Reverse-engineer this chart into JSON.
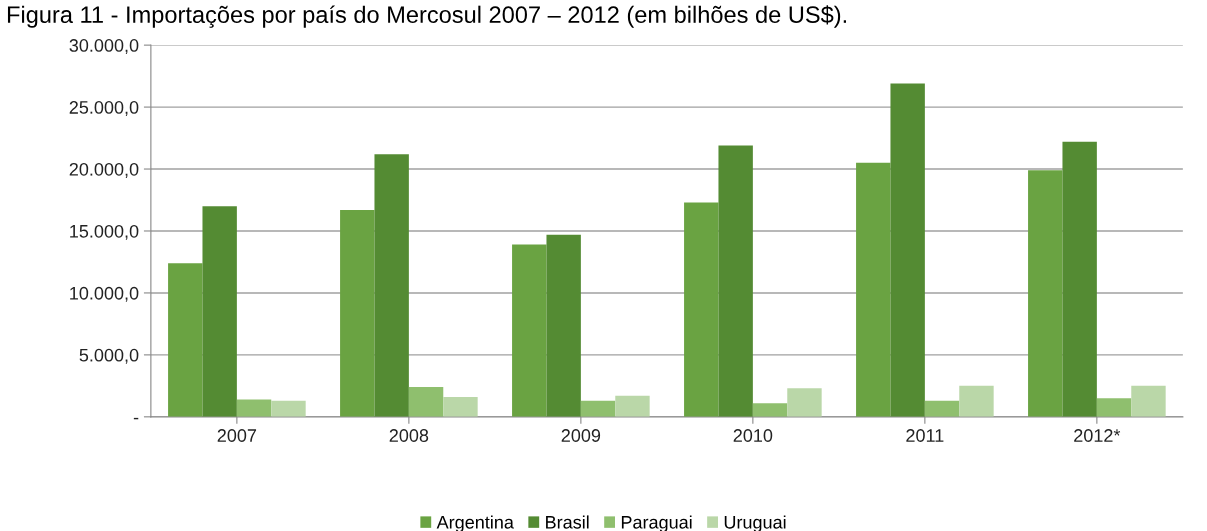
{
  "chart_data": {
    "type": "bar",
    "title": "Figura 11 - Importações por país do Mercosul 2007 – 2012 (em bilhões de US$).",
    "categories": [
      "2007",
      "2008",
      "2009",
      "2010",
      "2011",
      "2012*"
    ],
    "series": [
      {
        "name": "Argentina",
        "color": "#6aa342",
        "values": [
          12400,
          16700,
          13900,
          17300,
          20500,
          19900
        ]
      },
      {
        "name": "Brasil",
        "color": "#548b33",
        "values": [
          17000,
          21200,
          14700,
          21900,
          26900,
          22200
        ]
      },
      {
        "name": "Paraguai",
        "color": "#8fbf6e",
        "values": [
          1400,
          2400,
          1300,
          1100,
          1300,
          1500
        ]
      },
      {
        "name": "Uruguai",
        "color": "#bad7a8",
        "values": [
          1300,
          1600,
          1700,
          2300,
          2500,
          2500
        ]
      }
    ],
    "ylim": [
      0,
      30000
    ],
    "yticks": [
      {
        "value": 0,
        "label": "-"
      },
      {
        "value": 5000,
        "label": "5.000,0"
      },
      {
        "value": 10000,
        "label": "10.000,0"
      },
      {
        "value": 15000,
        "label": "15.000,0"
      },
      {
        "value": 20000,
        "label": "20.000,0"
      },
      {
        "value": 25000,
        "label": "25.000,0"
      },
      {
        "value": 30000,
        "label": "30.000,0"
      }
    ],
    "grid": "y",
    "legend": "bottom"
  }
}
